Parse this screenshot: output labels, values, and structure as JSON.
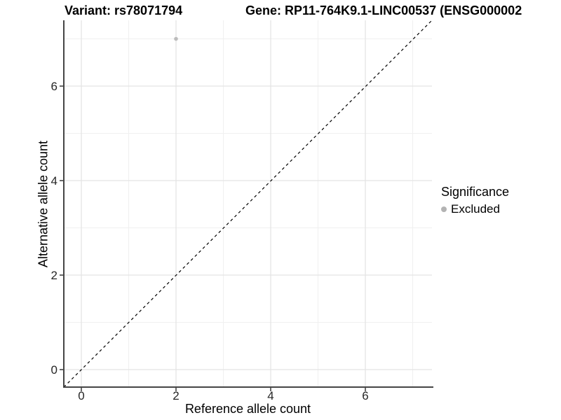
{
  "chart_data": {
    "type": "scatter",
    "title_left": "Variant: rs78071794",
    "title_right": "Gene: RP11-764K9.1-LINC00537 (ENSG000002",
    "xlabel": "Reference allele count",
    "ylabel": "Alternative allele count",
    "x_ticks": [
      0,
      2,
      4,
      6
    ],
    "y_ticks": [
      0,
      2,
      4,
      6
    ],
    "xlim": [
      -0.4,
      7.4
    ],
    "ylim": [
      -0.4,
      7.4
    ],
    "grid": {
      "major": [
        0,
        2,
        4,
        6
      ],
      "minor": [
        1,
        3,
        5,
        7
      ]
    },
    "series": [
      {
        "name": "Excluded",
        "color": "#bcbcbc",
        "points": [
          {
            "x": 2,
            "y": 7
          }
        ]
      }
    ],
    "reference_line": {
      "type": "identity y=x",
      "style": "dashed",
      "color": "#000000"
    },
    "legend": {
      "position": "right",
      "title": "Significance",
      "items": [
        {
          "label": "Excluded",
          "color": "#b3b3b3"
        }
      ]
    },
    "style": {
      "grid_major": "#e3e3e3",
      "grid_minor": "#f0f0f0",
      "axis": "#454545",
      "background": "#ffffff"
    }
  }
}
